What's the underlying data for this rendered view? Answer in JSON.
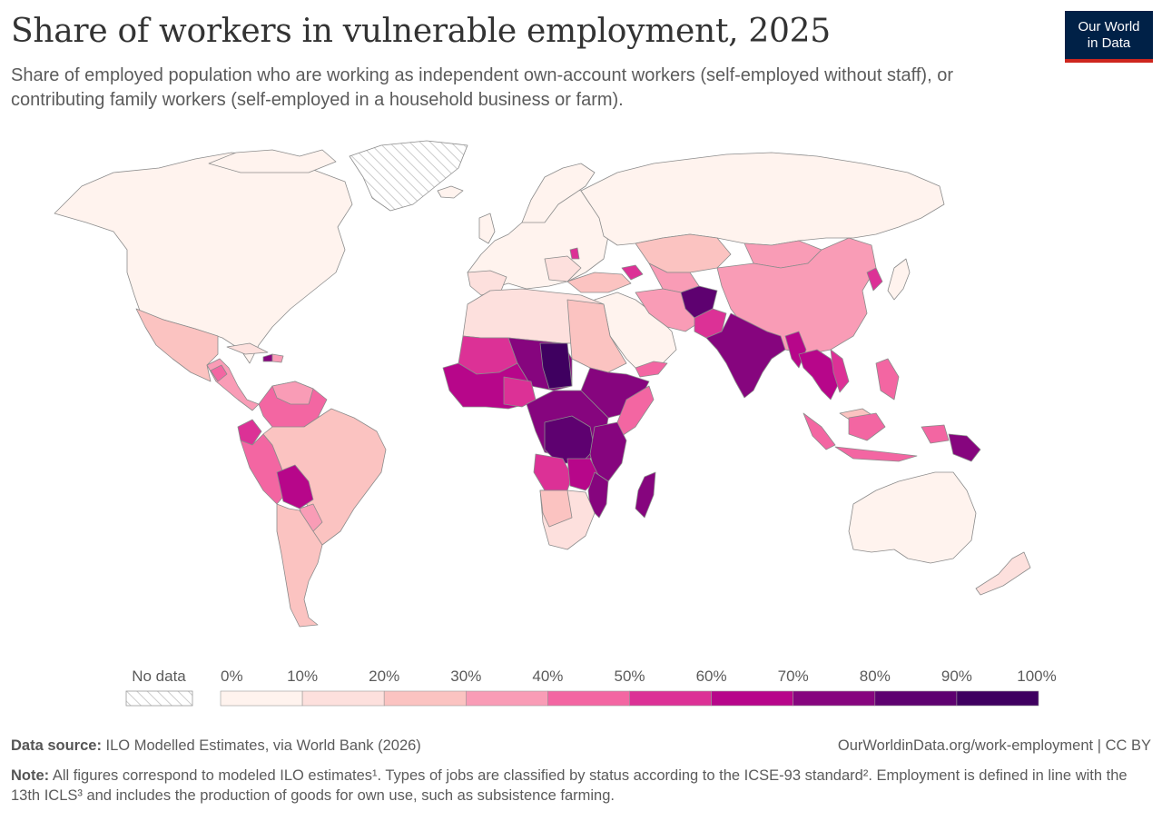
{
  "header": {
    "title": "Share of workers in vulnerable employment, 2025",
    "subtitle": "Share of employed population who are working as independent own-account workers (self-employed without staff), or contributing family workers (self-employed in a household business or farm).",
    "logo_line1": "Our World",
    "logo_line2": "in Data"
  },
  "colors": {
    "brand_navy": "#002147",
    "brand_red": "#ce261e",
    "no_data_hatch": "#cccccc",
    "scale": [
      "#fff3ee",
      "#fde0dd",
      "#fbc3c1",
      "#f99cb6",
      "#f366a2",
      "#dc3196",
      "#b7068a",
      "#86057e",
      "#5e0170",
      "#3f0060"
    ]
  },
  "legend": {
    "no_data_label": "No data",
    "tick_labels": [
      "0%",
      "10%",
      "20%",
      "30%",
      "40%",
      "50%",
      "60%",
      "70%",
      "80%",
      "90%",
      "100%"
    ]
  },
  "map_data": {
    "metric": "Share of workers in vulnerable employment",
    "year": "2025",
    "regions": [
      {
        "region": "North America",
        "bin": "0-10%"
      },
      {
        "region": "Greenland",
        "bin": "No data"
      },
      {
        "region": "Mexico",
        "bin": "20-30%"
      },
      {
        "region": "Central America",
        "bin": "30-50%"
      },
      {
        "region": "Haiti",
        "bin": "70-80%"
      },
      {
        "region": "Colombia",
        "bin": "40-50%"
      },
      {
        "region": "Ecuador",
        "bin": "40-50%"
      },
      {
        "region": "Peru",
        "bin": "40-50%"
      },
      {
        "region": "Bolivia",
        "bin": "60-70%"
      },
      {
        "region": "Brazil",
        "bin": "20-30%"
      },
      {
        "region": "Argentina / Chile",
        "bin": "20-30%"
      },
      {
        "region": "Europe",
        "bin": "0-20%"
      },
      {
        "region": "Russia",
        "bin": "0-10%"
      },
      {
        "region": "Kazakhstan / Central Asia",
        "bin": "20-30%"
      },
      {
        "region": "China",
        "bin": "30-40%"
      },
      {
        "region": "Mongolia",
        "bin": "30-40%"
      },
      {
        "region": "North Africa",
        "bin": "10-30%"
      },
      {
        "region": "West Africa",
        "bin": "60-80%"
      },
      {
        "region": "Sahel",
        "bin": "70-90%"
      },
      {
        "region": "Central Africa",
        "bin": "70-90%"
      },
      {
        "region": "East Africa",
        "bin": "70-90%"
      },
      {
        "region": "Southern Africa",
        "bin": "10-30%"
      },
      {
        "region": "Madagascar",
        "bin": "80-90%"
      },
      {
        "region": "Middle East",
        "bin": "0-20%"
      },
      {
        "region": "Iran",
        "bin": "30-40%"
      },
      {
        "region": "Afghanistan",
        "bin": "80-90%"
      },
      {
        "region": "India",
        "bin": "70-80%"
      },
      {
        "region": "Southeast Asia",
        "bin": "50-80%"
      },
      {
        "region": "Indonesia",
        "bin": "40-50%"
      },
      {
        "region": "Papua New Guinea",
        "bin": "70-80%"
      },
      {
        "region": "Australia",
        "bin": "0-10%"
      },
      {
        "region": "New Zealand",
        "bin": "10-20%"
      },
      {
        "region": "Japan",
        "bin": "0-10%"
      }
    ]
  },
  "footer": {
    "source_label": "Data source:",
    "source_text": " ILO Modelled Estimates, via World Bank (2026)",
    "url": "OurWorldinData.org/work-employment | CC BY",
    "note_label": "Note:",
    "note_text": " All figures correspond to modeled ILO estimates¹. Types of jobs are classified by status according to the ICSE-93 standard². Employment is defined in line with the 13th ICLS³ and includes the production of goods for own use, such as subsistence farming."
  }
}
